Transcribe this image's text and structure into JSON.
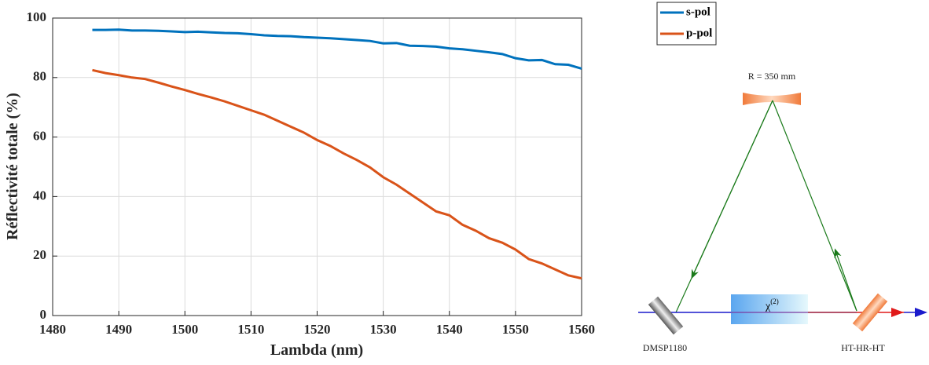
{
  "chart_data": {
    "type": "line",
    "x_label": "Lambda (nm)",
    "y_label": "Réflectivité totale (%)",
    "x": [
      1486,
      1488,
      1490,
      1492,
      1494,
      1496,
      1498,
      1500,
      1502,
      1504,
      1506,
      1508,
      1510,
      1512,
      1514,
      1516,
      1518,
      1520,
      1522,
      1524,
      1526,
      1528,
      1530,
      1532,
      1534,
      1536,
      1538,
      1540,
      1542,
      1544,
      1546,
      1548,
      1550,
      1552,
      1554,
      1556,
      1558,
      1560
    ],
    "series": [
      {
        "name": "s-pol",
        "color": "#0072bd",
        "values": [
          96,
          96,
          96.1,
          95.8,
          95.8,
          95.7,
          95.5,
          95.3,
          95.4,
          95.2,
          95,
          94.9,
          94.6,
          94.2,
          94,
          93.9,
          93.6,
          93.4,
          93.2,
          92.9,
          92.6,
          92.3,
          91.5,
          91.6,
          90.7,
          90.6,
          90.4,
          89.8,
          89.5,
          89,
          88.5,
          87.9,
          86.5,
          85.8,
          85.9,
          84.5,
          84.3,
          83
        ]
      },
      {
        "name": "p-pol",
        "color": "#d95319",
        "values": [
          82.5,
          81.5,
          80.8,
          80,
          79.5,
          78.3,
          77,
          75.8,
          74.5,
          73.3,
          72,
          70.5,
          69,
          67.5,
          65.5,
          63.5,
          61.5,
          59,
          57,
          54.5,
          52.3,
          49.8,
          46.5,
          44,
          41,
          38,
          35,
          33.7,
          30.5,
          28.5,
          26,
          24.5,
          22.2,
          19,
          17.5,
          15.5,
          13.5,
          12.5
        ]
      }
    ],
    "xlim": [
      1480,
      1560
    ],
    "xticks": [
      1480,
      1490,
      1500,
      1510,
      1520,
      1530,
      1540,
      1550,
      1560
    ],
    "ylim": [
      0,
      100
    ],
    "yticks": [
      0,
      20,
      40,
      60,
      80,
      100
    ],
    "grid": true,
    "legend": "outside-top-right"
  },
  "diagram": {
    "mirror_label": "R = 350 mm",
    "crystal_label": "χ",
    "crystal_superscript": "(2)",
    "left_mirror_label": "DMSP1180",
    "right_mirror_label": "HT-HR-HT"
  }
}
